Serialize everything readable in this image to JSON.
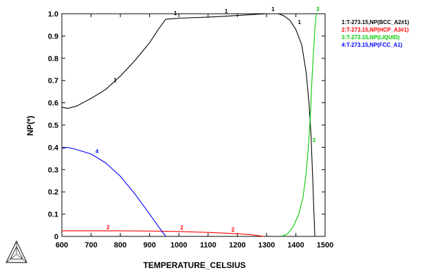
{
  "chart_data": {
    "type": "line",
    "title": "",
    "xlabel": "TEMPERATURE_CELSIUS",
    "ylabel": "NP(*)",
    "xlim": [
      600,
      1500
    ],
    "ylim": [
      0,
      1.0
    ],
    "x_ticks": [
      "600",
      "700",
      "800",
      "900",
      "1000",
      "1100",
      "1200",
      "1300",
      "1400",
      "1500"
    ],
    "y_ticks": [
      "0",
      "0.1",
      "0.2",
      "0.3",
      "0.4",
      "0.5",
      "0.6",
      "0.7",
      "0.8",
      "0.9",
      "1.0"
    ],
    "grid": false,
    "legend_position": "right",
    "series": [
      {
        "name": "1:T-273.15,NP(BCC_A2#1)",
        "color": "#000000",
        "label": "1",
        "x": [
          600,
          620,
          650,
          700,
          750,
          800,
          850,
          900,
          930,
          955,
          1000,
          1100,
          1200,
          1300,
          1340,
          1360,
          1380,
          1400,
          1420,
          1435,
          1445,
          1452,
          1458,
          1462,
          1465
        ],
        "y": [
          0.58,
          0.575,
          0.585,
          0.62,
          0.66,
          0.72,
          0.79,
          0.87,
          0.93,
          0.975,
          0.98,
          0.985,
          0.992,
          1.0,
          1.0,
          0.99,
          0.97,
          0.93,
          0.86,
          0.74,
          0.6,
          0.45,
          0.25,
          0.1,
          0.0
        ],
        "label_points": [
          [
            782,
            0.69
          ],
          [
            988,
            0.99
          ],
          [
            1162,
            1.0
          ],
          [
            1322,
            1.01
          ],
          [
            1412,
            0.95
          ]
        ]
      },
      {
        "name": "2:T-273.15,NP(HCP_A3#1)",
        "color": "#ff0000",
        "label": "2",
        "x": [
          600,
          700,
          800,
          900,
          1000,
          1100,
          1200,
          1250,
          1280,
          1290
        ],
        "y": [
          0.025,
          0.025,
          0.025,
          0.024,
          0.022,
          0.018,
          0.012,
          0.007,
          0.002,
          0.0
        ],
        "label_points": [
          [
            758,
            0.03
          ],
          [
            1010,
            0.028
          ],
          [
            1185,
            0.018
          ]
        ]
      },
      {
        "name": "3:T-273.15,NP(LIQUID)",
        "color": "#00cc00",
        "label": "3",
        "x": [
          1350,
          1370,
          1390,
          1410,
          1425,
          1435,
          1443,
          1450,
          1455,
          1460,
          1465,
          1470
        ],
        "y": [
          0.0,
          0.01,
          0.04,
          0.1,
          0.18,
          0.28,
          0.4,
          0.55,
          0.7,
          0.82,
          0.93,
          1.0
        ],
        "label_points": [
          [
            1462,
            0.42
          ],
          [
            1475,
            1.01
          ]
        ]
      },
      {
        "name": "4:T-273.15,NP(FCC_A1)",
        "color": "#0000ff",
        "label": "4",
        "x": [
          600,
          620,
          650,
          700,
          750,
          800,
          850,
          900,
          930,
          955
        ],
        "y": [
          0.395,
          0.4,
          0.39,
          0.37,
          0.33,
          0.27,
          0.19,
          0.1,
          0.045,
          0.0
        ],
        "label_points": [
          [
            720,
            0.37
          ]
        ]
      }
    ]
  },
  "logo": {
    "name": "thermo-calc-logo"
  }
}
